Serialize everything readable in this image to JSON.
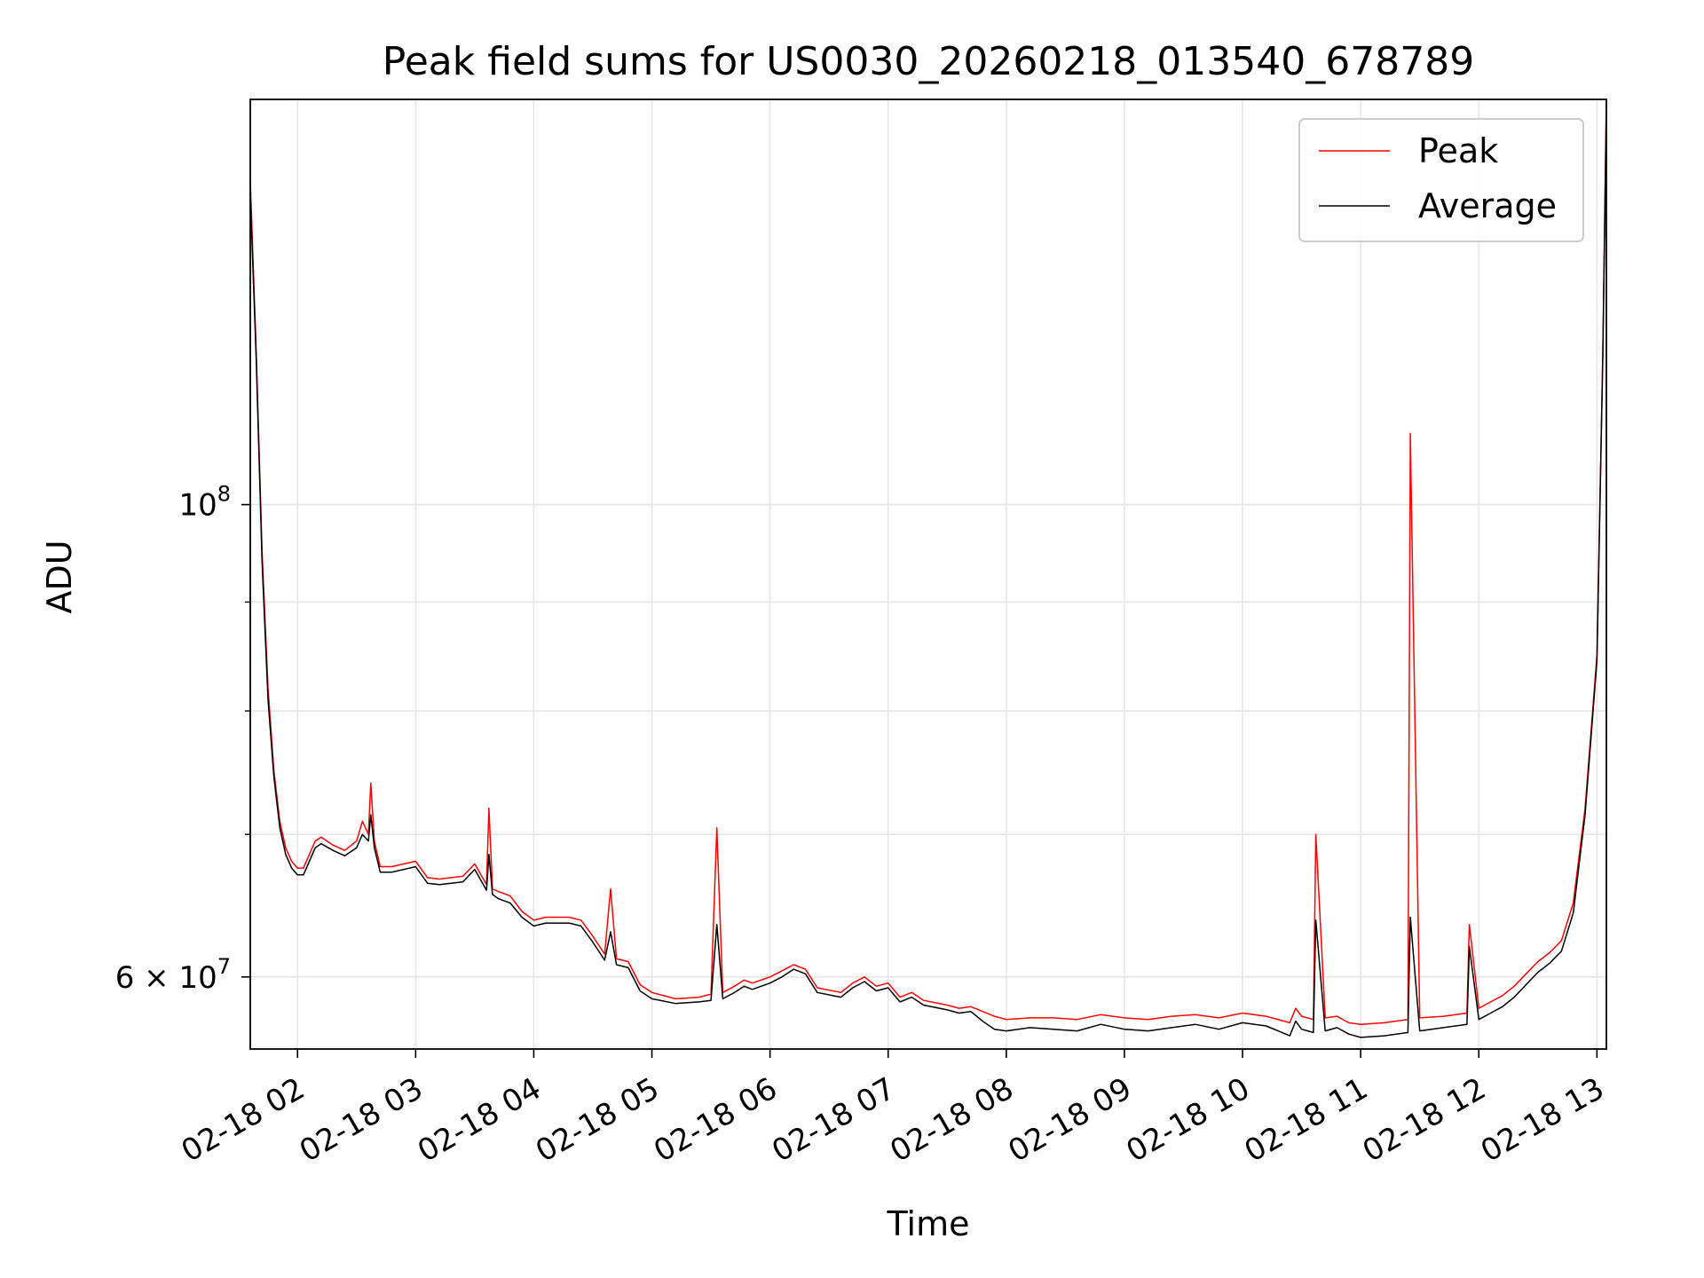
{
  "chart_data": {
    "type": "line",
    "title": "Peak field sums for US0030_20260218_013540_678789",
    "xlabel": "Time",
    "ylabel": "ADU",
    "yscale": "log",
    "ylim": [
      55500000,
      155000000
    ],
    "xlim_hours": [
      1.6,
      13.08
    ],
    "grid": true,
    "legend_position": "upper right",
    "x_ticks": [
      {
        "hour": 2,
        "label": "02-18 02"
      },
      {
        "hour": 3,
        "label": "02-18 03"
      },
      {
        "hour": 4,
        "label": "02-18 04"
      },
      {
        "hour": 5,
        "label": "02-18 05"
      },
      {
        "hour": 6,
        "label": "02-18 06"
      },
      {
        "hour": 7,
        "label": "02-18 07"
      },
      {
        "hour": 8,
        "label": "02-18 08"
      },
      {
        "hour": 9,
        "label": "02-18 09"
      },
      {
        "hour": 10,
        "label": "02-18 10"
      },
      {
        "hour": 11,
        "label": "02-18 11"
      },
      {
        "hour": 12,
        "label": "02-18 12"
      },
      {
        "hour": 13,
        "label": "02-18 13"
      }
    ],
    "y_major_ticks": [
      {
        "value": 60000000,
        "base": "6",
        "exp": "7"
      },
      {
        "value": 100000000,
        "base": "",
        "exp": "8"
      }
    ],
    "y_minor_ticks": [
      70000000,
      80000000,
      90000000
    ],
    "series": [
      {
        "name": "Peak",
        "color": "#ff0000",
        "x": [
          1.6,
          1.65,
          1.7,
          1.75,
          1.8,
          1.85,
          1.9,
          1.95,
          2.0,
          2.05,
          2.1,
          2.15,
          2.2,
          2.3,
          2.4,
          2.5,
          2.55,
          2.6,
          2.62,
          2.65,
          2.7,
          2.8,
          2.9,
          3.0,
          3.1,
          3.2,
          3.3,
          3.4,
          3.5,
          3.6,
          3.62,
          3.65,
          3.7,
          3.8,
          3.9,
          4.0,
          4.1,
          4.2,
          4.3,
          4.4,
          4.5,
          4.6,
          4.65,
          4.7,
          4.8,
          4.9,
          5.0,
          5.2,
          5.4,
          5.5,
          5.55,
          5.6,
          5.7,
          5.78,
          5.85,
          6.0,
          6.1,
          6.2,
          6.3,
          6.4,
          6.6,
          6.7,
          6.8,
          6.9,
          7.0,
          7.1,
          7.2,
          7.3,
          7.5,
          7.6,
          7.7,
          7.8,
          7.9,
          8.0,
          8.2,
          8.4,
          8.6,
          8.8,
          9.0,
          9.2,
          9.4,
          9.6,
          9.8,
          10.0,
          10.2,
          10.4,
          10.45,
          10.5,
          10.6,
          10.62,
          10.7,
          10.8,
          10.9,
          11.0,
          11.2,
          11.4,
          11.42,
          11.5,
          11.7,
          11.9,
          11.92,
          12.0,
          12.1,
          12.2,
          12.3,
          12.4,
          12.5,
          12.6,
          12.7,
          12.8,
          12.9,
          13.0,
          13.05,
          13.08
        ],
        "y": [
          142000000,
          118000000,
          95000000,
          82000000,
          75000000,
          71000000,
          69000000,
          68000000,
          67500000,
          67500000,
          68500000,
          69500000,
          69800000,
          69200000,
          68800000,
          69500000,
          71000000,
          70000000,
          74000000,
          69500000,
          67600000,
          67600000,
          67800000,
          68000000,
          66800000,
          66700000,
          66800000,
          66900000,
          67800000,
          66300000,
          72000000,
          66000000,
          65800000,
          65500000,
          64400000,
          63800000,
          64000000,
          64000000,
          64000000,
          63800000,
          62700000,
          61500000,
          66000000,
          61200000,
          61000000,
          59500000,
          59000000,
          58600000,
          58700000,
          58900000,
          70500000,
          59000000,
          59400000,
          59800000,
          59600000,
          60000000,
          60400000,
          60800000,
          60500000,
          59300000,
          59000000,
          59600000,
          60000000,
          59400000,
          59600000,
          58700000,
          59000000,
          58500000,
          58200000,
          58000000,
          58100000,
          57800000,
          57500000,
          57300000,
          57400000,
          57400000,
          57300000,
          57600000,
          57400000,
          57300000,
          57500000,
          57600000,
          57400000,
          57700000,
          57500000,
          57100000,
          58000000,
          57500000,
          57300000,
          70000000,
          57400000,
          57500000,
          57100000,
          57000000,
          57100000,
          57300000,
          108000000,
          57400000,
          57500000,
          57700000,
          63500000,
          58000000,
          58400000,
          58800000,
          59400000,
          60200000,
          61000000,
          61600000,
          62400000,
          65000000,
          72000000,
          85000000,
          118000000,
          155000000
        ]
      },
      {
        "name": "Average",
        "color": "#000000",
        "x": [
          1.6,
          1.65,
          1.7,
          1.75,
          1.8,
          1.85,
          1.9,
          1.95,
          2.0,
          2.05,
          2.1,
          2.15,
          2.2,
          2.3,
          2.4,
          2.5,
          2.55,
          2.6,
          2.62,
          2.65,
          2.7,
          2.8,
          2.9,
          3.0,
          3.1,
          3.2,
          3.3,
          3.4,
          3.5,
          3.6,
          3.62,
          3.65,
          3.7,
          3.8,
          3.9,
          4.0,
          4.1,
          4.2,
          4.3,
          4.4,
          4.5,
          4.6,
          4.65,
          4.7,
          4.8,
          4.9,
          5.0,
          5.2,
          5.4,
          5.5,
          5.55,
          5.6,
          5.7,
          5.78,
          5.85,
          6.0,
          6.1,
          6.2,
          6.3,
          6.4,
          6.6,
          6.7,
          6.8,
          6.9,
          7.0,
          7.1,
          7.2,
          7.3,
          7.5,
          7.6,
          7.7,
          7.8,
          7.9,
          8.0,
          8.2,
          8.4,
          8.6,
          8.8,
          9.0,
          9.2,
          9.4,
          9.6,
          9.8,
          10.0,
          10.2,
          10.4,
          10.45,
          10.5,
          10.6,
          10.62,
          10.7,
          10.8,
          10.9,
          11.0,
          11.2,
          11.4,
          11.42,
          11.5,
          11.7,
          11.9,
          11.92,
          12.0,
          12.1,
          12.2,
          12.3,
          12.4,
          12.5,
          12.6,
          12.7,
          12.8,
          12.9,
          13.0,
          13.05,
          13.08
        ],
        "y": [
          140000000,
          117000000,
          94000000,
          81000000,
          74500000,
          70500000,
          68500000,
          67500000,
          67000000,
          67000000,
          68000000,
          69000000,
          69300000,
          68800000,
          68400000,
          69000000,
          70000000,
          69500000,
          71500000,
          69000000,
          67200000,
          67200000,
          67400000,
          67600000,
          66400000,
          66300000,
          66400000,
          66500000,
          67400000,
          65900000,
          68500000,
          65600000,
          65300000,
          65000000,
          64000000,
          63400000,
          63600000,
          63600000,
          63600000,
          63400000,
          62300000,
          61100000,
          63000000,
          60800000,
          60600000,
          59100000,
          58600000,
          58300000,
          58400000,
          58500000,
          63500000,
          58600000,
          59000000,
          59400000,
          59200000,
          59600000,
          60000000,
          60500000,
          60200000,
          59000000,
          58700000,
          59300000,
          59700000,
          59100000,
          59300000,
          58400000,
          58700000,
          58200000,
          57900000,
          57700000,
          57800000,
          57200000,
          56700000,
          56600000,
          56800000,
          56700000,
          56600000,
          57000000,
          56700000,
          56600000,
          56800000,
          57000000,
          56700000,
          57100000,
          56900000,
          56300000,
          57200000,
          56700000,
          56500000,
          63800000,
          56600000,
          56800000,
          56400000,
          56200000,
          56300000,
          56500000,
          64000000,
          56600000,
          56800000,
          57000000,
          62000000,
          57300000,
          57700000,
          58100000,
          58700000,
          59500000,
          60300000,
          60900000,
          61700000,
          64300000,
          71500000,
          84500000,
          117500000,
          154000000
        ]
      }
    ]
  }
}
